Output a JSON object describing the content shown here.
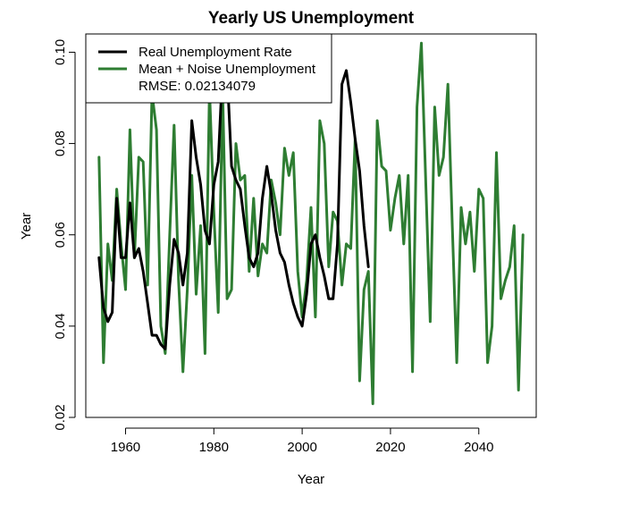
{
  "chart_data": {
    "type": "line",
    "title": "Yearly US Unemployment",
    "xlabel": "Year",
    "ylabel": "Year",
    "xlim": [
      1951,
      2053
    ],
    "ylim": [
      0.02,
      0.104
    ],
    "x_ticks": [
      1960,
      1980,
      2000,
      2020,
      2040
    ],
    "x_tick_labels": [
      "1960",
      "1980",
      "2000",
      "2020",
      "2040"
    ],
    "y_ticks": [
      0.02,
      0.04,
      0.06,
      0.08,
      0.1
    ],
    "y_tick_labels": [
      "0.02",
      "0.04",
      "0.06",
      "0.08",
      "0.10"
    ],
    "grid": false,
    "legend": {
      "position": "top-left",
      "entries": [
        "Real Unemployment Rate",
        "Mean + Noise Unemployment"
      ],
      "extra_text": "RMSE: 0.02134079"
    },
    "series": [
      {
        "name": "Real Unemployment Rate",
        "color": "#000000",
        "x": [
          1954,
          1955,
          1956,
          1957,
          1958,
          1959,
          1960,
          1961,
          1962,
          1963,
          1964,
          1965,
          1966,
          1967,
          1968,
          1969,
          1970,
          1971,
          1972,
          1973,
          1974,
          1975,
          1976,
          1977,
          1978,
          1979,
          1980,
          1981,
          1982,
          1983,
          1984,
          1985,
          1986,
          1987,
          1988,
          1989,
          1990,
          1991,
          1992,
          1993,
          1994,
          1995,
          1996,
          1997,
          1998,
          1999,
          2000,
          2001,
          2002,
          2003,
          2004,
          2005,
          2006,
          2007,
          2008,
          2009,
          2010,
          2011,
          2012,
          2013,
          2014,
          2015
        ],
        "y": [
          0.055,
          0.044,
          0.041,
          0.043,
          0.068,
          0.055,
          0.055,
          0.067,
          0.055,
          0.057,
          0.052,
          0.045,
          0.038,
          0.038,
          0.036,
          0.035,
          0.049,
          0.059,
          0.056,
          0.049,
          0.056,
          0.085,
          0.077,
          0.071,
          0.061,
          0.058,
          0.071,
          0.076,
          0.097,
          0.096,
          0.075,
          0.072,
          0.07,
          0.062,
          0.055,
          0.053,
          0.056,
          0.068,
          0.075,
          0.069,
          0.061,
          0.056,
          0.054,
          0.049,
          0.045,
          0.042,
          0.04,
          0.047,
          0.058,
          0.06,
          0.055,
          0.051,
          0.046,
          0.046,
          0.058,
          0.093,
          0.096,
          0.089,
          0.081,
          0.074,
          0.062,
          0.053
        ]
      },
      {
        "name": "Mean + Noise Unemployment",
        "color": "#2e7d32",
        "x": [
          1954,
          1955,
          1956,
          1957,
          1958,
          1959,
          1960,
          1961,
          1962,
          1963,
          1964,
          1965,
          1966,
          1967,
          1968,
          1969,
          1970,
          1971,
          1972,
          1973,
          1974,
          1975,
          1976,
          1977,
          1978,
          1979,
          1980,
          1981,
          1982,
          1983,
          1984,
          1985,
          1986,
          1987,
          1988,
          1989,
          1990,
          1991,
          1992,
          1993,
          1994,
          1995,
          1996,
          1997,
          1998,
          1999,
          2000,
          2001,
          2002,
          2003,
          2004,
          2005,
          2006,
          2007,
          2008,
          2009,
          2010,
          2011,
          2012,
          2013,
          2014,
          2015,
          2016,
          2017,
          2018,
          2019,
          2020,
          2021,
          2022,
          2023,
          2024,
          2025,
          2026,
          2027,
          2028,
          2029,
          2030,
          2031,
          2032,
          2033,
          2034,
          2035,
          2036,
          2037,
          2038,
          2039,
          2040,
          2041,
          2042,
          2043,
          2044,
          2045,
          2046,
          2047,
          2048,
          2049,
          2050
        ],
        "y": [
          0.077,
          0.032,
          0.058,
          0.05,
          0.07,
          0.058,
          0.048,
          0.083,
          0.055,
          0.077,
          0.076,
          0.049,
          0.091,
          0.083,
          0.04,
          0.034,
          0.06,
          0.084,
          0.05,
          0.03,
          0.048,
          0.073,
          0.047,
          0.062,
          0.034,
          0.092,
          0.065,
          0.043,
          0.091,
          0.046,
          0.048,
          0.08,
          0.072,
          0.073,
          0.052,
          0.068,
          0.051,
          0.058,
          0.056,
          0.072,
          0.067,
          0.06,
          0.079,
          0.073,
          0.078,
          0.052,
          0.042,
          0.05,
          0.066,
          0.042,
          0.085,
          0.08,
          0.053,
          0.065,
          0.063,
          0.049,
          0.058,
          0.057,
          0.081,
          0.028,
          0.048,
          0.052,
          0.023,
          0.085,
          0.075,
          0.074,
          0.061,
          0.068,
          0.073,
          0.058,
          0.073,
          0.03,
          0.088,
          0.102,
          0.071,
          0.041,
          0.088,
          0.073,
          0.077,
          0.093,
          0.062,
          0.032,
          0.066,
          0.058,
          0.065,
          0.052,
          0.07,
          0.068,
          0.032,
          0.04,
          0.078,
          0.046,
          0.05,
          0.053,
          0.062,
          0.026,
          0.06
        ]
      }
    ]
  }
}
